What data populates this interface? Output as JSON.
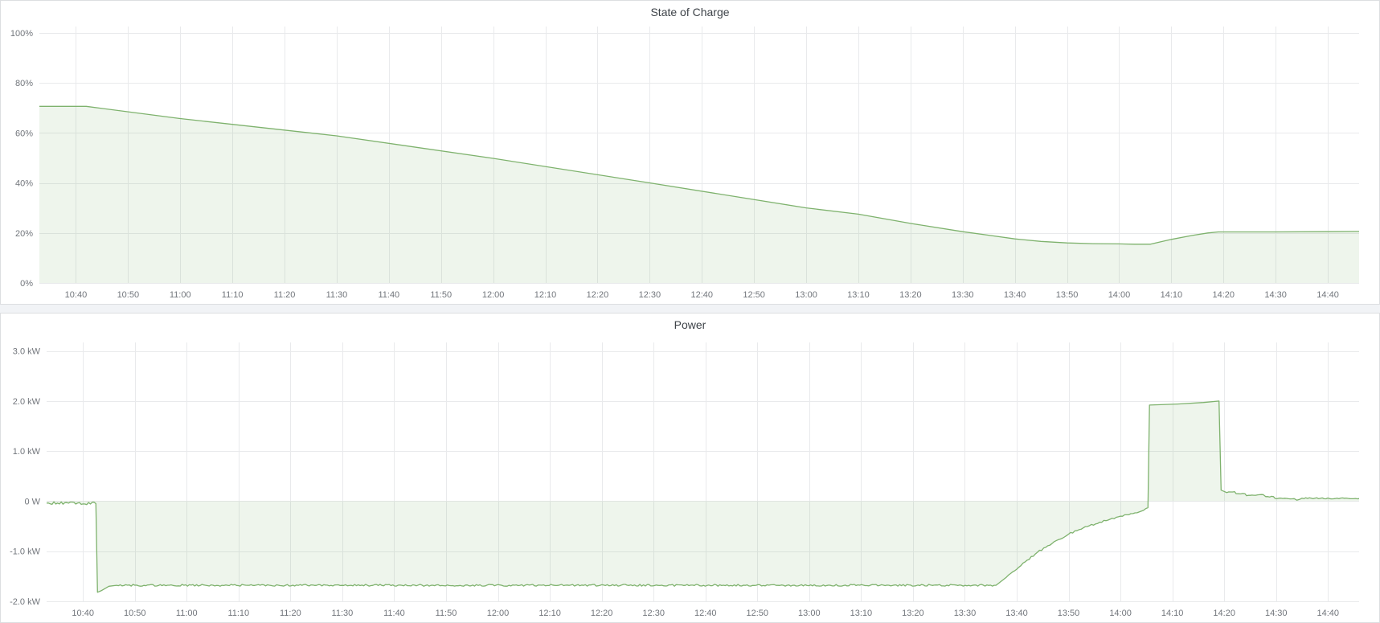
{
  "page": {
    "background": "#f1f3f6",
    "panel_background": "#ffffff",
    "panel_border": "#dcdee1",
    "accent_green": "#7eb26d"
  },
  "chart_data": [
    {
      "type": "area",
      "title": "State of Charge",
      "xlabel": "",
      "ylabel": "",
      "ylim": [
        0,
        102.5
      ],
      "grid": true,
      "legend_position": "none",
      "line_color": "#7eb26d",
      "fill_color": "rgba(126,178,109,0.13)",
      "x_domain": [
        "10:33",
        "14:46"
      ],
      "x_ticks": [
        "10:40",
        "10:50",
        "11:00",
        "11:10",
        "11:20",
        "11:30",
        "11:40",
        "11:50",
        "12:00",
        "12:10",
        "12:20",
        "12:30",
        "12:40",
        "12:50",
        "13:00",
        "13:10",
        "13:20",
        "13:30",
        "13:40",
        "13:50",
        "14:00",
        "14:10",
        "14:20",
        "14:30",
        "14:40"
      ],
      "y_ticks": [
        {
          "value": 0,
          "label": "0%"
        },
        {
          "value": 20,
          "label": "20%"
        },
        {
          "value": 40,
          "label": "40%"
        },
        {
          "value": 60,
          "label": "60%"
        },
        {
          "value": 80,
          "label": "80%"
        },
        {
          "value": 100,
          "label": "100%"
        }
      ],
      "series": [
        {
          "name": "State of Charge",
          "unit": "%",
          "points": [
            [
              "10:33",
              70.6
            ],
            [
              "10:42",
              70.6
            ],
            [
              "11:00",
              65.7
            ],
            [
              "11:30",
              58.8
            ],
            [
              "12:00",
              49.8
            ],
            [
              "12:30",
              40.0
            ],
            [
              "13:00",
              30.0
            ],
            [
              "13:10",
              27.5
            ],
            [
              "13:20",
              23.8
            ],
            [
              "13:30",
              20.5
            ],
            [
              "13:35",
              19.1
            ],
            [
              "13:40",
              17.6
            ],
            [
              "13:45",
              16.6
            ],
            [
              "13:50",
              16.0
            ],
            [
              "13:55",
              15.7
            ],
            [
              "14:00",
              15.6
            ],
            [
              "14:03",
              15.5
            ],
            [
              "14:06",
              15.5
            ],
            [
              "14:10",
              17.4
            ],
            [
              "14:14",
              19.0
            ],
            [
              "14:17",
              20.0
            ],
            [
              "14:19",
              20.4
            ],
            [
              "14:30",
              20.4
            ],
            [
              "14:40",
              20.5
            ],
            [
              "14:46",
              20.6
            ]
          ]
        }
      ]
    },
    {
      "type": "area",
      "title": "Power",
      "xlabel": "",
      "ylabel": "",
      "ylim": [
        -2,
        3.17
      ],
      "grid": true,
      "legend_position": "none",
      "line_color": "#7eb26d",
      "fill_color": "rgba(126,178,109,0.13)",
      "x_domain": [
        "10:33",
        "14:46"
      ],
      "x_ticks": [
        "10:40",
        "10:50",
        "11:00",
        "11:10",
        "11:20",
        "11:30",
        "11:40",
        "11:50",
        "12:00",
        "12:10",
        "12:20",
        "12:30",
        "12:40",
        "12:50",
        "13:00",
        "13:10",
        "13:20",
        "13:30",
        "13:40",
        "13:50",
        "14:00",
        "14:10",
        "14:20",
        "14:30",
        "14:40"
      ],
      "y_ticks": [
        {
          "value": -2,
          "label": "-2.0 kW"
        },
        {
          "value": -1,
          "label": "-1.0 kW"
        },
        {
          "value": 0,
          "label": "0 W"
        },
        {
          "value": 1,
          "label": "1.0 kW"
        },
        {
          "value": 2,
          "label": "2.0 kW"
        },
        {
          "value": 3,
          "label": "3.0 kW"
        }
      ],
      "series": [
        {
          "name": "Power",
          "unit": "kW",
          "points": [
            [
              "10:33",
              -0.04,
              0.03
            ],
            [
              "10:42.5",
              -0.05
            ],
            [
              "10:42.8",
              -1.82
            ],
            [
              "10:43.5",
              -1.79
            ],
            [
              "10:45",
              -1.7
            ],
            [
              "10:46.5",
              -1.68,
              0.018
            ],
            [
              "13:36",
              -1.68
            ],
            [
              "13:38",
              -1.52,
              0.02
            ],
            [
              "13:40",
              -1.36,
              0.02
            ],
            [
              "13:42",
              -1.18,
              0.02
            ],
            [
              "13:44",
              -1.02,
              0.02
            ],
            [
              "13:46",
              -0.89,
              0.02
            ],
            [
              "13:48",
              -0.77,
              0.02
            ],
            [
              "13:50",
              -0.66,
              0.02
            ],
            [
              "13:52",
              -0.57,
              0.02
            ],
            [
              "13:54",
              -0.49,
              0.02
            ],
            [
              "13:56",
              -0.42,
              0.015
            ],
            [
              "13:58",
              -0.36,
              0.015
            ],
            [
              "14:00",
              -0.3,
              0.012
            ],
            [
              "14:02",
              -0.25,
              0.012
            ],
            [
              "14:04",
              -0.2,
              0.01
            ],
            [
              "14:05.3",
              -0.13
            ],
            [
              "14:05.6",
              1.92
            ],
            [
              "14:11",
              1.94
            ],
            [
              "14:16",
              1.97
            ],
            [
              "14:19",
              2.0
            ],
            [
              "14:19.4",
              0.22
            ],
            [
              "14:20.5",
              0.17,
              0.012
            ],
            [
              "14:22",
              0.19
            ],
            [
              "14:22.3",
              0.15,
              0.008
            ],
            [
              "14:24",
              0.15
            ],
            [
              "14:24.3",
              0.11,
              0.008
            ],
            [
              "14:27.5",
              0.13
            ],
            [
              "14:28",
              0.09,
              0.008
            ],
            [
              "14:29.5",
              0.09
            ],
            [
              "14:29.8",
              0.055,
              0.01
            ],
            [
              "14:33.5",
              0.05
            ],
            [
              "14:34",
              0.02,
              0.01
            ],
            [
              "14:35",
              0.06,
              0.012
            ],
            [
              "14:46",
              0.05
            ]
          ]
        }
      ]
    }
  ]
}
